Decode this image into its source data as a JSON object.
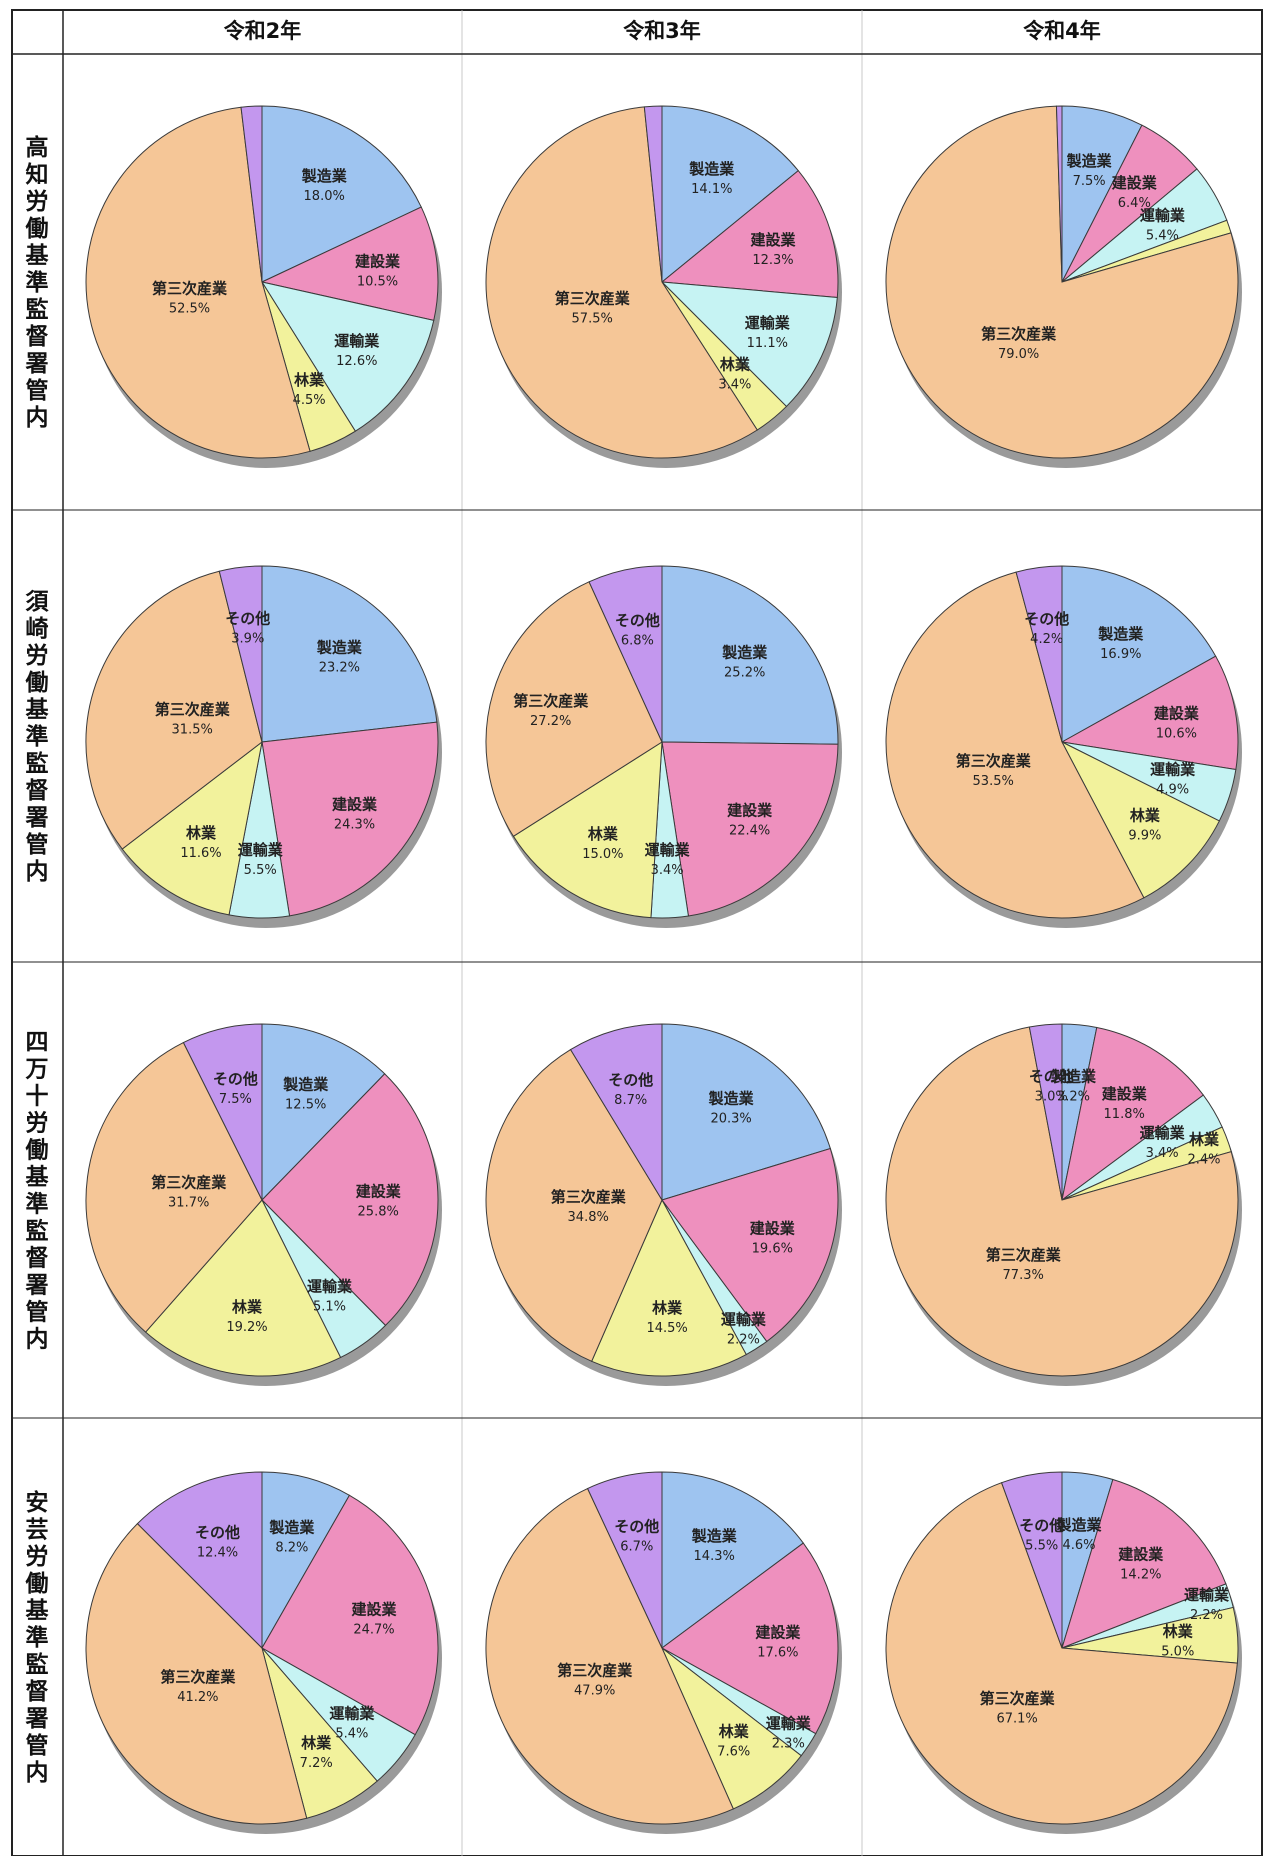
{
  "table": {
    "columns": [
      "令和2年",
      "令和3年",
      "令和4年"
    ],
    "rows": [
      "高知労働基準監督署管内",
      "須崎労働基準監督署管内",
      "四万十労働基準監督署管内",
      "安芸労働基準監督署管内"
    ]
  },
  "colors": {
    "製造業": "#9EC4F0",
    "建設業": "#EE90BE",
    "運輸業": "#C6F3F3",
    "林業": "#F2F29C",
    "第三次産業": "#F5C697",
    "その他": "#C397EE"
  },
  "chart_data": [
    {
      "type": "pie",
      "row": "高知労働基準監督署管内",
      "column": "令和2年",
      "labels": [
        "製造業",
        "建設業",
        "運輸業",
        "林業",
        "第三次産業",
        "その他"
      ],
      "display": [
        "18.0%",
        "10.5%",
        "12.6%",
        "4.5%",
        "52.5%",
        ""
      ],
      "values": [
        18.0,
        10.5,
        12.6,
        4.5,
        52.5,
        1.9
      ]
    },
    {
      "type": "pie",
      "row": "高知労働基準監督署管内",
      "column": "令和3年",
      "labels": [
        "製造業",
        "建設業",
        "運輸業",
        "林業",
        "第三次産業",
        "その他"
      ],
      "display": [
        "14.1%",
        "12.3%",
        "11.1%",
        "3.4%",
        "57.5%",
        ""
      ],
      "values": [
        14.1,
        12.3,
        11.1,
        3.4,
        57.5,
        1.6
      ]
    },
    {
      "type": "pie",
      "row": "高知労働基準監督署管内",
      "column": "令和4年",
      "labels": [
        "製造業",
        "建設業",
        "運輸業",
        "林業",
        "第三次産業",
        "その他"
      ],
      "display": [
        "7.5%",
        "6.4%",
        "5.4%",
        "",
        "79.0%",
        ""
      ],
      "values": [
        7.5,
        6.4,
        5.4,
        1.2,
        79.0,
        0.5
      ]
    },
    {
      "type": "pie",
      "row": "須崎労働基準監督署管内",
      "column": "令和2年",
      "labels": [
        "製造業",
        "建設業",
        "運輸業",
        "林業",
        "第三次産業",
        "その他"
      ],
      "display": [
        "23.2%",
        "24.3%",
        "5.5%",
        "11.6%",
        "31.5%",
        "3.9%"
      ],
      "values": [
        23.2,
        24.3,
        5.5,
        11.6,
        31.5,
        3.9
      ]
    },
    {
      "type": "pie",
      "row": "須崎労働基準監督署管内",
      "column": "令和3年",
      "labels": [
        "製造業",
        "建設業",
        "運輸業",
        "林業",
        "第三次産業",
        "その他"
      ],
      "display": [
        "25.2%",
        "22.4%",
        "3.4%",
        "15.0%",
        "27.2%",
        "6.8%"
      ],
      "values": [
        25.2,
        22.4,
        3.4,
        15.0,
        27.2,
        6.8
      ]
    },
    {
      "type": "pie",
      "row": "須崎労働基準監督署管内",
      "column": "令和4年",
      "labels": [
        "製造業",
        "建設業",
        "運輸業",
        "林業",
        "第三次産業",
        "その他"
      ],
      "display": [
        "16.9%",
        "10.6%",
        "4.9%",
        "9.9%",
        "53.5%",
        "4.2%"
      ],
      "values": [
        16.9,
        10.6,
        4.9,
        9.9,
        53.5,
        4.2
      ]
    },
    {
      "type": "pie",
      "row": "四万十労働基準監督署管内",
      "column": "令和2年",
      "labels": [
        "製造業",
        "建設業",
        "運輸業",
        "林業",
        "第三次産業",
        "その他"
      ],
      "display": [
        "12.5%",
        "25.8%",
        "5.1%",
        "19.2%",
        "31.7%",
        "7.5%"
      ],
      "values": [
        12.5,
        25.8,
        5.1,
        19.2,
        31.7,
        7.5
      ]
    },
    {
      "type": "pie",
      "row": "四万十労働基準監督署管内",
      "column": "令和3年",
      "labels": [
        "製造業",
        "建設業",
        "運輸業",
        "林業",
        "第三次産業",
        "その他"
      ],
      "display": [
        "20.3%",
        "19.6%",
        "2.2%",
        "14.5%",
        "34.8%",
        "8.7%"
      ],
      "values": [
        20.3,
        19.6,
        2.2,
        14.5,
        34.8,
        8.7
      ]
    },
    {
      "type": "pie",
      "row": "四万十労働基準監督署管内",
      "column": "令和4年",
      "labels": [
        "製造業",
        "建設業",
        "運輸業",
        "林業",
        "第三次産業",
        "その他"
      ],
      "display": [
        "3.2%",
        "11.8%",
        "3.4%",
        "2.4%",
        "77.3%",
        "3.0%"
      ],
      "values": [
        3.2,
        11.8,
        3.4,
        2.4,
        77.3,
        3.0
      ]
    },
    {
      "type": "pie",
      "row": "安芸労働基準監督署管内",
      "column": "令和2年",
      "labels": [
        "製造業",
        "建設業",
        "運輸業",
        "林業",
        "第三次産業",
        "その他"
      ],
      "display": [
        "8.2%",
        "24.7%",
        "5.4%",
        "7.2%",
        "41.2%",
        "12.4%"
      ],
      "values": [
        8.2,
        24.7,
        5.4,
        7.2,
        41.2,
        12.4
      ]
    },
    {
      "type": "pie",
      "row": "安芸労働基準監督署管内",
      "column": "令和3年",
      "labels": [
        "製造業",
        "建設業",
        "運輸業",
        "林業",
        "第三次産業",
        "その他"
      ],
      "display": [
        "14.3%",
        "17.6%",
        "2.3%",
        "7.6%",
        "47.9%",
        "6.7%"
      ],
      "values": [
        14.3,
        17.6,
        2.3,
        7.6,
        47.9,
        6.7
      ]
    },
    {
      "type": "pie",
      "row": "安芸労働基準監督署管内",
      "column": "令和4年",
      "labels": [
        "製造業",
        "建設業",
        "運輸業",
        "林業",
        "第三次産業",
        "その他"
      ],
      "display": [
        "4.6%",
        "14.2%",
        "2.2%",
        "5.0%",
        "67.1%",
        "5.5%"
      ],
      "values": [
        4.6,
        14.2,
        2.2,
        5.0,
        67.1,
        5.5
      ]
    }
  ]
}
